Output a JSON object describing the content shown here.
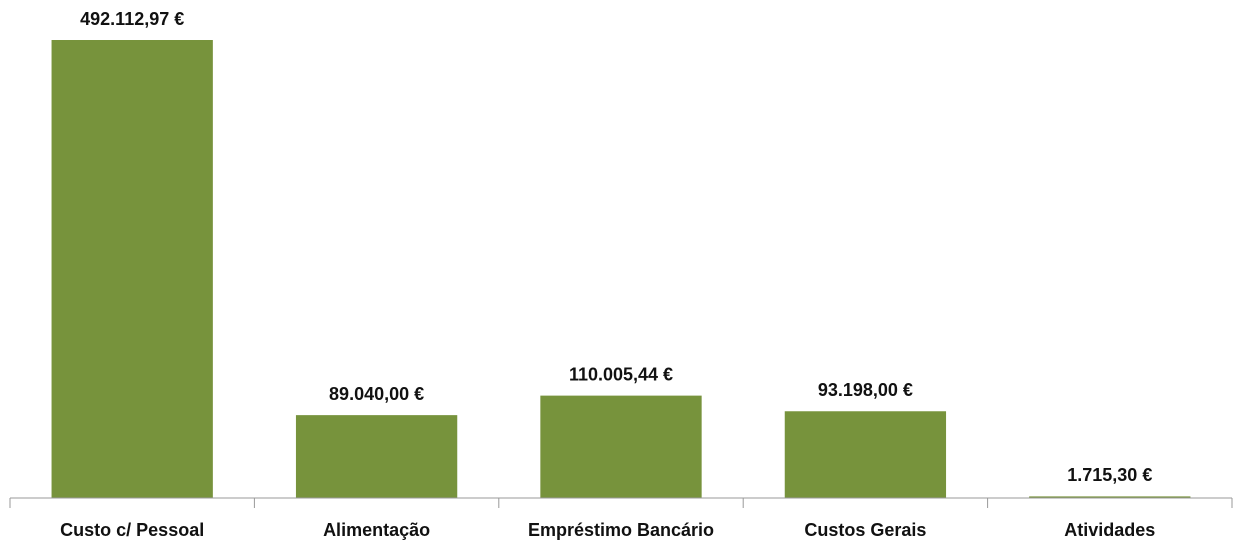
{
  "chart_data": {
    "type": "bar",
    "categories": [
      "Custo c/ Pessoal",
      "Alimentação",
      "Empréstimo Bancário",
      "Custos Gerais",
      "Atividades"
    ],
    "values": [
      492112.97,
      89040,
      110005.44,
      93198,
      1715.3
    ],
    "value_labels": [
      "492.112,97 €",
      "89.040,00 €",
      "110.005,44 €",
      "93.198,00 €",
      "1.715,30 €"
    ],
    "color": "#77933c"
  }
}
